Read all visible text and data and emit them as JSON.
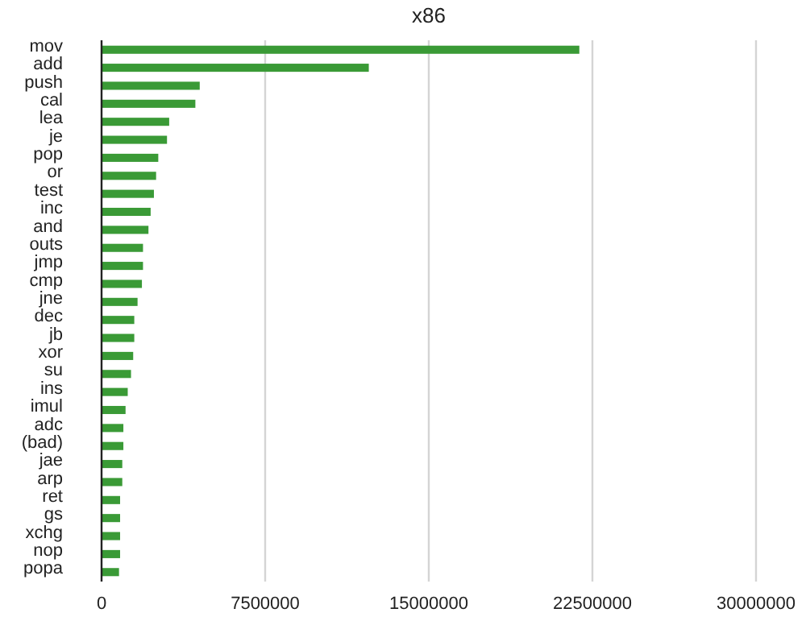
{
  "chart_data": {
    "type": "bar",
    "title": "x86",
    "orientation": "horizontal",
    "categories": [
      "mov",
      "add",
      "push",
      "cal",
      "lea",
      "je",
      "pop",
      "or",
      "test",
      "inc",
      "and",
      "outs",
      "jmp",
      "cmp",
      "jne",
      "dec",
      "jb",
      "xor",
      "su",
      "ins",
      "imul",
      "adc",
      "(bad)",
      "jae",
      "arp",
      "ret",
      "gs",
      "xchg",
      "nop",
      "popa"
    ],
    "values": [
      21900000,
      12250000,
      4500000,
      4300000,
      3100000,
      3000000,
      2600000,
      2500000,
      2400000,
      2250000,
      2150000,
      1900000,
      1900000,
      1850000,
      1650000,
      1500000,
      1500000,
      1450000,
      1350000,
      1200000,
      1100000,
      1000000,
      1000000,
      950000,
      950000,
      850000,
      850000,
      850000,
      850000,
      800000
    ],
    "color": "#3a9a36",
    "xlim": [
      0,
      30000000
    ],
    "xticks": [
      0,
      7500000,
      15000000,
      22500000,
      30000000
    ],
    "grid": "x"
  }
}
